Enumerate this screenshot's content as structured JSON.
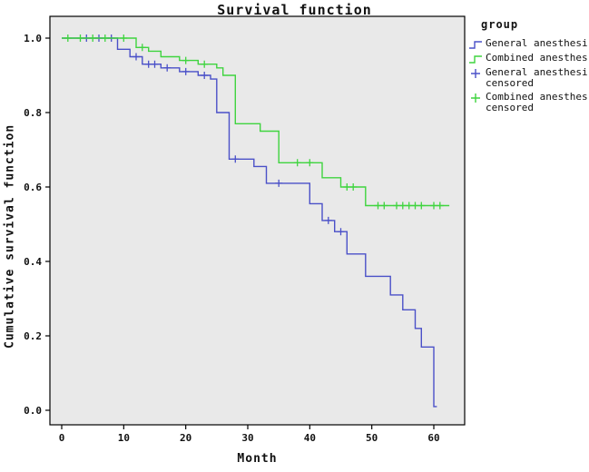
{
  "title": "Survival function",
  "axes": {
    "x_label": "Month",
    "y_label": "Cumulative survival function",
    "x_ticks": [
      0,
      10,
      20,
      30,
      40,
      50,
      60
    ],
    "y_ticks": [
      "0.0",
      "0.2",
      "0.4",
      "0.6",
      "0.8",
      "1.0"
    ]
  },
  "legend": {
    "title": "group",
    "entries": [
      {
        "label": "General anesthesi",
        "sublabel": "",
        "marker": "line",
        "color": "#4a50c8"
      },
      {
        "label": "Combined anesthes",
        "sublabel": "",
        "marker": "line",
        "color": "#3fd43f"
      },
      {
        "label": "General anesthesi",
        "sublabel": "censored",
        "marker": "censor",
        "color": "#4a50c8"
      },
      {
        "label": "Combined anesthes",
        "sublabel": "censored",
        "marker": "censor",
        "color": "#3fd43f"
      }
    ]
  },
  "colors": {
    "blue": "#4a50c8",
    "green": "#3fd43f",
    "plot_bg": "#e9e9e9",
    "border": "#000000",
    "text": "#111111"
  },
  "chart_data": {
    "type": "line",
    "subtype": "kaplan-meier-step",
    "title": "Survival function",
    "xlabel": "Month",
    "ylabel": "Cumulative survival function",
    "xlim": [
      -2,
      64
    ],
    "ylim": [
      -0.04,
      1.05
    ],
    "x_ticks": [
      0,
      10,
      20,
      30,
      40,
      50,
      60
    ],
    "y_ticks": [
      0.0,
      0.2,
      0.4,
      0.6,
      0.8,
      1.0
    ],
    "grid": false,
    "legend_position": "right",
    "series": [
      {
        "name": "General anesthesia",
        "color": "#4a50c8",
        "steps": [
          [
            0,
            1.0
          ],
          [
            9,
            0.97
          ],
          [
            11,
            0.95
          ],
          [
            13,
            0.93
          ],
          [
            16,
            0.92
          ],
          [
            19,
            0.91
          ],
          [
            22,
            0.9
          ],
          [
            24,
            0.89
          ],
          [
            25,
            0.8
          ],
          [
            27,
            0.675
          ],
          [
            31,
            0.655
          ],
          [
            33,
            0.61
          ],
          [
            40,
            0.555
          ],
          [
            42,
            0.51
          ],
          [
            44,
            0.48
          ],
          [
            46,
            0.42
          ],
          [
            49,
            0.36
          ],
          [
            53,
            0.31
          ],
          [
            55,
            0.27
          ],
          [
            57,
            0.22
          ],
          [
            58,
            0.17
          ],
          [
            60,
            0.01
          ]
        ],
        "end_month": 60.5,
        "censored": [
          [
            4,
            1.0
          ],
          [
            6,
            1.0
          ],
          [
            8,
            1.0
          ],
          [
            12,
            0.95
          ],
          [
            14,
            0.93
          ],
          [
            15,
            0.93
          ],
          [
            17,
            0.92
          ],
          [
            20,
            0.91
          ],
          [
            23,
            0.9
          ],
          [
            28,
            0.675
          ],
          [
            35,
            0.61
          ],
          [
            43,
            0.51
          ],
          [
            45,
            0.48
          ]
        ]
      },
      {
        "name": "Combined anesthesia",
        "color": "#3fd43f",
        "steps": [
          [
            0,
            1.0
          ],
          [
            12,
            0.975
          ],
          [
            14,
            0.965
          ],
          [
            16,
            0.95
          ],
          [
            19,
            0.94
          ],
          [
            22,
            0.93
          ],
          [
            25,
            0.92
          ],
          [
            26,
            0.9
          ],
          [
            28,
            0.77
          ],
          [
            32,
            0.75
          ],
          [
            35,
            0.665
          ],
          [
            42,
            0.625
          ],
          [
            45,
            0.6
          ],
          [
            49,
            0.55
          ]
        ],
        "end_month": 62.5,
        "censored": [
          [
            1,
            1.0
          ],
          [
            3,
            1.0
          ],
          [
            5,
            1.0
          ],
          [
            7,
            1.0
          ],
          [
            10,
            1.0
          ],
          [
            13,
            0.975
          ],
          [
            20,
            0.94
          ],
          [
            23,
            0.93
          ],
          [
            38,
            0.665
          ],
          [
            40,
            0.665
          ],
          [
            46,
            0.6
          ],
          [
            47,
            0.6
          ],
          [
            51,
            0.55
          ],
          [
            52,
            0.55
          ],
          [
            54,
            0.55
          ],
          [
            55,
            0.55
          ],
          [
            56,
            0.55
          ],
          [
            57,
            0.55
          ],
          [
            58,
            0.55
          ],
          [
            60,
            0.55
          ],
          [
            61,
            0.55
          ]
        ]
      }
    ]
  }
}
